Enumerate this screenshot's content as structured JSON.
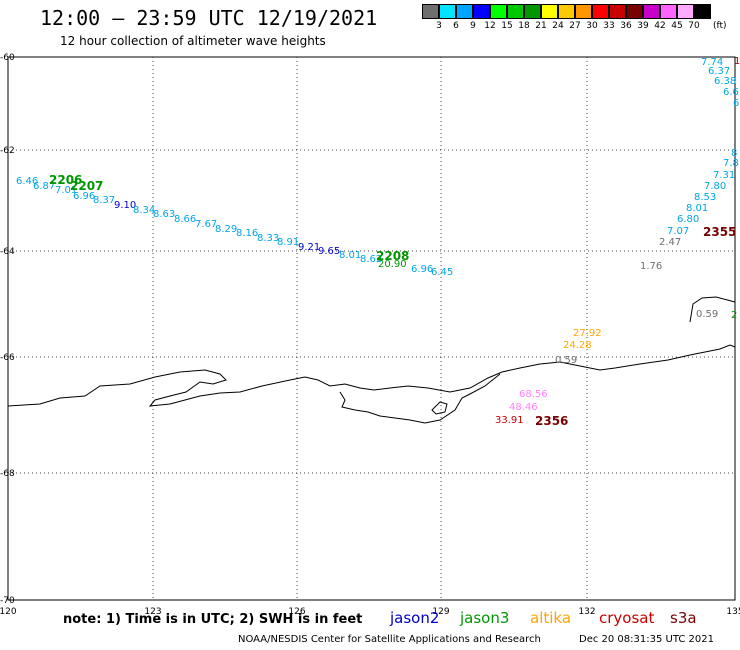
{
  "title": "12:00 – 23:59 UTC 12/19/2021",
  "subtitle": "12 hour collection of altimeter wave heights",
  "scale": {
    "colors": [
      "#6e6e6e",
      "#00e4ff",
      "#00a5ff",
      "#0000ff",
      "#00ff00",
      "#00c800",
      "#009600",
      "#ffff00",
      "#ffc800",
      "#ff9600",
      "#ff0000",
      "#c80000",
      "#780000",
      "#c800c8",
      "#ff64ff",
      "#ffaaff",
      "#000000"
    ],
    "labels": [
      "3",
      "6",
      "9",
      "12",
      "15",
      "18",
      "21",
      "24",
      "27",
      "30",
      "33",
      "36",
      "39",
      "42",
      "45",
      "70"
    ],
    "unit": "(ft)"
  },
  "axes": {
    "lat_labels": [
      "-60",
      "-62",
      "-64",
      "-66",
      "-68",
      "-70"
    ],
    "lon_labels": [
      "120",
      "123",
      "126",
      "129",
      "132",
      "135"
    ]
  },
  "wave_labels": [
    {
      "text": "6.46",
      "color": "#00a5e6"
    },
    {
      "text": "6.87",
      "color": "#00a5e6"
    },
    {
      "text": "7.01",
      "color": "#00a5e6"
    },
    {
      "text": "6.96",
      "color": "#00a5e6"
    },
    {
      "text": "8.37",
      "color": "#00a5e6"
    },
    {
      "text": "9.10",
      "color": "#0000c8"
    },
    {
      "text": "8.34",
      "color": "#00a5e6"
    },
    {
      "text": "8.63",
      "color": "#00a5e6"
    },
    {
      "text": "8.66",
      "color": "#00a5e6"
    },
    {
      "text": "7.67",
      "color": "#00a5e6"
    },
    {
      "text": "8.29",
      "color": "#00a5e6"
    },
    {
      "text": "8.16",
      "color": "#00a5e6"
    },
    {
      "text": "8.33",
      "color": "#00a5e6"
    },
    {
      "text": "8.91",
      "color": "#00a5e6"
    },
    {
      "text": "9.21",
      "color": "#0000c8"
    },
    {
      "text": "9.65",
      "color": "#0000c8"
    },
    {
      "text": "8.01",
      "color": "#00a5e6"
    },
    {
      "text": "8.62",
      "color": "#00a5e6"
    },
    {
      "text": "20.90",
      "color": "#009600"
    },
    {
      "text": "6.96",
      "color": "#00a5e6"
    },
    {
      "text": "6.45",
      "color": "#00a5e6"
    },
    {
      "text": "7.74",
      "color": "#00a5e6"
    },
    {
      "text": "6.37",
      "color": "#00a5e6"
    },
    {
      "text": "6.38",
      "color": "#00a5e6"
    },
    {
      "text": "6.6",
      "color": "#00a5e6"
    },
    {
      "text": "6",
      "color": "#00a5e6"
    },
    {
      "text": "8",
      "color": "#00a5e6"
    },
    {
      "text": "7.8",
      "color": "#00a5e6"
    },
    {
      "text": "7.31",
      "color": "#00a5e6"
    },
    {
      "text": "7.80",
      "color": "#00a5e6"
    },
    {
      "text": "8.53",
      "color": "#00a5e6"
    },
    {
      "text": "8.01",
      "color": "#00a5e6"
    },
    {
      "text": "6.80",
      "color": "#00a5e6"
    },
    {
      "text": "7.07",
      "color": "#00a5e6"
    },
    {
      "text": "2.47",
      "color": "#6e6e6e"
    },
    {
      "text": "1.76",
      "color": "#6e6e6e"
    },
    {
      "text": "0.59",
      "color": "#6e6e6e"
    },
    {
      "text": "27.92",
      "color": "#ffa500"
    },
    {
      "text": "24.28",
      "color": "#ffa500"
    },
    {
      "text": "0.59",
      "color": "#6e6e6e"
    },
    {
      "text": "68.56",
      "color": "#ff82ff"
    },
    {
      "text": "48.46",
      "color": "#ff82ff"
    },
    {
      "text": "33.91",
      "color": "#c80000"
    },
    {
      "text": "1",
      "color": "#a00000"
    },
    {
      "text": "2",
      "color": "#009600"
    }
  ],
  "pass_times": [
    {
      "text": "2206",
      "color": "#009600"
    },
    {
      "text": "2207",
      "color": "#009600"
    },
    {
      "text": "2208",
      "color": "#009600"
    },
    {
      "text": "2355",
      "color": "#780000"
    },
    {
      "text": "2356",
      "color": "#780000"
    }
  ],
  "note": "note: 1) Time is in UTC; 2) SWH is in feet",
  "satellites": [
    {
      "name": "jason2",
      "color": "#0000c8"
    },
    {
      "name": "jason3",
      "color": "#009600"
    },
    {
      "name": "altika",
      "color": "#ffa500"
    },
    {
      "name": "cryosat",
      "color": "#c80000"
    },
    {
      "name": "s3a",
      "color": "#780000"
    }
  ],
  "footer": "NOAA/NESDIS Center for Satellite Applications and Research",
  "footer_time": "Dec 20 08:31:35 UTC 2021"
}
